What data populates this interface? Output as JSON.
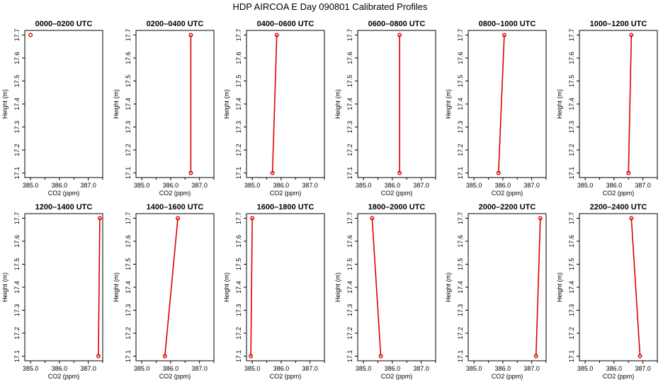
{
  "title": "HDP AIRCOA E  Day 090801  Calibrated Profiles",
  "colors": {
    "series": "#dd0000",
    "axis": "#000000"
  },
  "chart_data": {
    "type": "line",
    "layout": "2x6 small multiples",
    "xlabel": "CO2 (ppm)",
    "ylabel": "Height (m)",
    "xlim": [
      384.8,
      387.5
    ],
    "ylim": [
      17.08,
      17.72
    ],
    "xticks": [
      385.0,
      386.0,
      387.0
    ],
    "xtick_labels": [
      "385.0",
      "386.0",
      "387.0"
    ],
    "yticks": [
      17.1,
      17.2,
      17.3,
      17.4,
      17.5,
      17.6,
      17.7
    ],
    "ytick_labels": [
      "17.1",
      "17.2",
      "17.3",
      "17.4",
      "17.5",
      "17.6",
      "17.7"
    ],
    "grid": false,
    "panels": [
      {
        "title": "0000–0200 UTC",
        "points": [
          {
            "x": 385.0,
            "y": 17.7
          }
        ]
      },
      {
        "title": "0200–0400 UTC",
        "points": [
          {
            "x": 386.7,
            "y": 17.1
          },
          {
            "x": 386.7,
            "y": 17.7
          }
        ]
      },
      {
        "title": "0400–0600 UTC",
        "points": [
          {
            "x": 385.7,
            "y": 17.1
          },
          {
            "x": 385.85,
            "y": 17.7
          }
        ]
      },
      {
        "title": "0600–0800 UTC",
        "points": [
          {
            "x": 386.25,
            "y": 17.1
          },
          {
            "x": 386.25,
            "y": 17.7
          }
        ]
      },
      {
        "title": "0800–1000 UTC",
        "points": [
          {
            "x": 385.85,
            "y": 17.1
          },
          {
            "x": 386.05,
            "y": 17.7
          }
        ]
      },
      {
        "title": "1000–1200 UTC",
        "points": [
          {
            "x": 386.5,
            "y": 17.1
          },
          {
            "x": 386.6,
            "y": 17.7
          }
        ]
      },
      {
        "title": "1200–1400 UTC",
        "points": [
          {
            "x": 387.35,
            "y": 17.1
          },
          {
            "x": 387.4,
            "y": 17.7
          }
        ]
      },
      {
        "title": "1400–1600 UTC",
        "points": [
          {
            "x": 385.8,
            "y": 17.1
          },
          {
            "x": 386.25,
            "y": 17.7
          }
        ]
      },
      {
        "title": "1600–1800 UTC",
        "points": [
          {
            "x": 384.95,
            "y": 17.1
          },
          {
            "x": 385.0,
            "y": 17.7
          }
        ]
      },
      {
        "title": "1800–2000 UTC",
        "points": [
          {
            "x": 385.6,
            "y": 17.1
          },
          {
            "x": 385.3,
            "y": 17.7
          }
        ]
      },
      {
        "title": "2000–2200 UTC",
        "points": [
          {
            "x": 387.15,
            "y": 17.1
          },
          {
            "x": 387.3,
            "y": 17.7
          }
        ]
      },
      {
        "title": "2200–2400 UTC",
        "points": [
          {
            "x": 386.9,
            "y": 17.1
          },
          {
            "x": 386.6,
            "y": 17.7
          }
        ]
      }
    ]
  }
}
